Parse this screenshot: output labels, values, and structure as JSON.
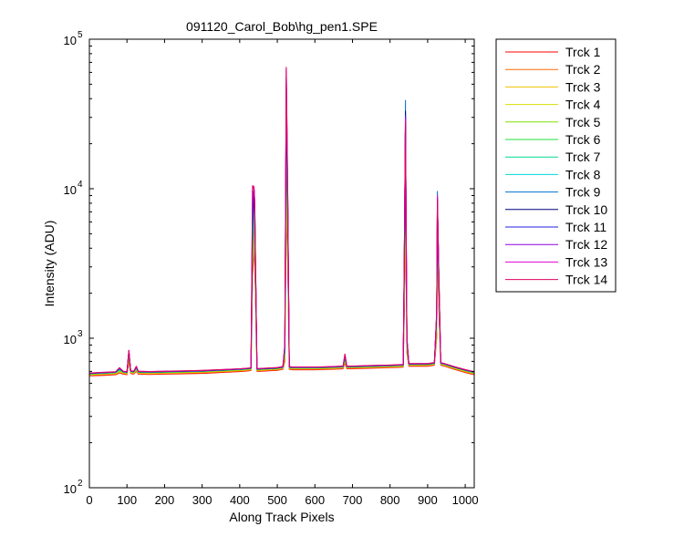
{
  "chart_data": {
    "type": "line",
    "title": "091120_Carol_Bob\\hg_pen1.SPE",
    "xlabel": "Along Track Pixels",
    "ylabel": "Intensity (ADU)",
    "xlim": [
      0,
      1024
    ],
    "ylim": [
      100,
      100000
    ],
    "yscale": "log",
    "grid": false,
    "legend_position": "outside-right",
    "x_ticks": [
      0,
      100,
      200,
      300,
      400,
      500,
      600,
      700,
      800,
      900,
      1000
    ],
    "x_tick_labels": [
      "0",
      "100",
      "200",
      "300",
      "400",
      "500",
      "600",
      "700",
      "800",
      "900",
      "1000"
    ],
    "y_ticks": [
      {
        "value": 100,
        "base": "10",
        "exp": "2"
      },
      {
        "value": 1000,
        "base": "10",
        "exp": "3"
      },
      {
        "value": 10000,
        "base": "10",
        "exp": "4"
      },
      {
        "value": 100000,
        "base": "10",
        "exp": "5"
      }
    ],
    "x": [
      0,
      40,
      70,
      80,
      90,
      100,
      105,
      110,
      118,
      125,
      130,
      160,
      200,
      250,
      300,
      350,
      400,
      425,
      430,
      434,
      438,
      440,
      442,
      446,
      450,
      500,
      515,
      520,
      524,
      528,
      532,
      540,
      600,
      650,
      675,
      680,
      685,
      700,
      750,
      800,
      835,
      838,
      841,
      843,
      845,
      850,
      880,
      900,
      918,
      924,
      926,
      930,
      935,
      945,
      970,
      1000,
      1024
    ],
    "series": [
      {
        "name": "Trck 1",
        "color": "#ff0000",
        "values": [
          560,
          565,
          570,
          585,
          575,
          570,
          700,
          580,
          575,
          600,
          575,
          572,
          575,
          578,
          582,
          590,
          598,
          605,
          610,
          2500,
          4000,
          3000,
          1800,
          600,
          600,
          610,
          620,
          700,
          7000,
          3000,
          620,
          615,
          615,
          620,
          625,
          680,
          625,
          625,
          630,
          635,
          640,
          1500,
          9000,
          2200,
          800,
          650,
          650,
          650,
          660,
          1000,
          4000,
          1500,
          660,
          650,
          620,
          590,
          570
        ]
      },
      {
        "name": "Trck 2",
        "color": "#ff6a00",
        "values": [
          565,
          570,
          575,
          590,
          580,
          575,
          720,
          585,
          580,
          605,
          580,
          577,
          580,
          583,
          587,
          595,
          603,
          610,
          615,
          2700,
          4400,
          3300,
          1900,
          605,
          605,
          615,
          625,
          720,
          8000,
          3300,
          625,
          620,
          620,
          625,
          630,
          690,
          630,
          630,
          635,
          640,
          645,
          1650,
          10000,
          2400,
          820,
          655,
          655,
          655,
          665,
          1050,
          4300,
          1600,
          665,
          655,
          625,
          595,
          575
        ]
      },
      {
        "name": "Trck 3",
        "color": "#f0c000",
        "values": [
          570,
          575,
          580,
          595,
          585,
          580,
          740,
          590,
          585,
          610,
          585,
          582,
          585,
          588,
          592,
          600,
          608,
          615,
          620,
          2900,
          4800,
          3600,
          2000,
          610,
          610,
          620,
          630,
          740,
          9000,
          3600,
          630,
          625,
          625,
          630,
          635,
          700,
          635,
          635,
          640,
          645,
          650,
          1800,
          11000,
          2600,
          840,
          660,
          660,
          660,
          670,
          1100,
          4600,
          1700,
          670,
          660,
          630,
          600,
          580
        ]
      },
      {
        "name": "Trck 4",
        "color": "#d4e000",
        "values": [
          572,
          578,
          583,
          600,
          588,
          583,
          760,
          593,
          588,
          615,
          588,
          585,
          588,
          591,
          595,
          603,
          611,
          618,
          623,
          3200,
          5400,
          4000,
          2150,
          613,
          613,
          623,
          633,
          760,
          11000,
          4000,
          633,
          628,
          628,
          633,
          638,
          710,
          638,
          638,
          643,
          648,
          653,
          2000,
          13000,
          2900,
          860,
          663,
          663,
          663,
          673,
          1150,
          5000,
          1800,
          673,
          663,
          633,
          603,
          583
        ]
      },
      {
        "name": "Trck 5",
        "color": "#80e000",
        "values": [
          575,
          581,
          586,
          605,
          591,
          586,
          780,
          596,
          591,
          620,
          591,
          588,
          591,
          594,
          598,
          606,
          614,
          621,
          626,
          3500,
          6000,
          4500,
          2300,
          616,
          616,
          626,
          636,
          780,
          14000,
          4500,
          636,
          631,
          631,
          636,
          641,
          720,
          641,
          641,
          646,
          651,
          656,
          2200,
          16000,
          3200,
          880,
          666,
          666,
          666,
          676,
          1200,
          5500,
          1900,
          676,
          666,
          636,
          606,
          586
        ]
      },
      {
        "name": "Trck 6",
        "color": "#20e040",
        "values": [
          577,
          583,
          588,
          610,
          593,
          588,
          800,
          598,
          593,
          625,
          593,
          590,
          593,
          596,
          600,
          608,
          616,
          623,
          628,
          3800,
          6800,
          5000,
          2450,
          618,
          618,
          628,
          638,
          800,
          18000,
          5000,
          638,
          633,
          633,
          638,
          643,
          730,
          643,
          643,
          648,
          653,
          658,
          2400,
          19000,
          3500,
          900,
          668,
          668,
          668,
          678,
          1250,
          6000,
          2000,
          678,
          668,
          638,
          608,
          588
        ]
      },
      {
        "name": "Trck 7",
        "color": "#00d890",
        "values": [
          579,
          585,
          590,
          615,
          595,
          590,
          810,
          600,
          595,
          630,
          595,
          592,
          595,
          598,
          602,
          610,
          618,
          625,
          630,
          4200,
          7600,
          5600,
          2600,
          620,
          620,
          630,
          640,
          820,
          23000,
          5600,
          640,
          635,
          635,
          640,
          645,
          740,
          645,
          645,
          650,
          655,
          660,
          2600,
          22000,
          3800,
          920,
          670,
          670,
          670,
          680,
          1300,
          6600,
          2100,
          680,
          670,
          640,
          610,
          590
        ]
      },
      {
        "name": "Trck 8",
        "color": "#00d8d8",
        "values": [
          580,
          586,
          591,
          620,
          596,
          591,
          815,
          601,
          596,
          635,
          596,
          593,
          596,
          599,
          603,
          611,
          619,
          626,
          631,
          4700,
          8400,
          6200,
          2750,
          621,
          621,
          631,
          641,
          840,
          29000,
          6200,
          641,
          636,
          636,
          641,
          646,
          750,
          646,
          646,
          651,
          656,
          661,
          2800,
          26000,
          4100,
          940,
          671,
          671,
          671,
          681,
          1350,
          7200,
          2200,
          681,
          671,
          641,
          611,
          591
        ]
      },
      {
        "name": "Trck 9",
        "color": "#0070d0",
        "values": [
          581,
          587,
          592,
          625,
          597,
          592,
          820,
          602,
          597,
          640,
          597,
          594,
          597,
          600,
          604,
          612,
          620,
          627,
          632,
          5200,
          9200,
          6800,
          2900,
          622,
          622,
          632,
          642,
          860,
          36000,
          6800,
          642,
          637,
          637,
          642,
          647,
          760,
          647,
          647,
          652,
          657,
          662,
          3000,
          39000,
          4400,
          960,
          672,
          672,
          672,
          682,
          1400,
          9600,
          2300,
          682,
          672,
          642,
          612,
          592
        ]
      },
      {
        "name": "Trck 10",
        "color": "#000080",
        "values": [
          582,
          588,
          593,
          628,
          598,
          593,
          822,
          603,
          598,
          642,
          598,
          595,
          598,
          601,
          605,
          613,
          621,
          628,
          633,
          5600,
          9600,
          7200,
          3000,
          623,
          623,
          633,
          643,
          870,
          45000,
          7200,
          643,
          638,
          638,
          643,
          648,
          765,
          648,
          648,
          653,
          658,
          663,
          3200,
          33000,
          4600,
          970,
          673,
          673,
          673,
          683,
          1420,
          8200,
          2350,
          683,
          673,
          643,
          613,
          593
        ]
      },
      {
        "name": "Trck 11",
        "color": "#2020e0",
        "values": [
          583,
          589,
          594,
          630,
          599,
          594,
          824,
          604,
          599,
          644,
          599,
          596,
          599,
          602,
          606,
          614,
          622,
          629,
          634,
          6000,
          10000,
          7600,
          3100,
          624,
          624,
          634,
          644,
          880,
          55000,
          7600,
          644,
          639,
          639,
          644,
          649,
          770,
          649,
          649,
          654,
          659,
          664,
          3300,
          31000,
          4800,
          980,
          674,
          674,
          674,
          684,
          1440,
          8600,
          2400,
          684,
          674,
          644,
          614,
          594
        ]
      },
      {
        "name": "Trck 12",
        "color": "#9000e0",
        "values": [
          584,
          590,
          595,
          632,
          600,
          595,
          826,
          605,
          600,
          646,
          600,
          597,
          600,
          603,
          607,
          615,
          623,
          630,
          635,
          8000,
          10200,
          8000,
          3200,
          625,
          625,
          635,
          645,
          890,
          62000,
          8000,
          645,
          640,
          640,
          645,
          650,
          775,
          650,
          650,
          655,
          660,
          665,
          3400,
          30000,
          5000,
          990,
          675,
          675,
          675,
          685,
          1460,
          8800,
          2450,
          685,
          675,
          645,
          615,
          595
        ]
      },
      {
        "name": "Trck 13",
        "color": "#e000d0",
        "values": [
          585,
          591,
          596,
          634,
          601,
          596,
          828,
          606,
          601,
          648,
          601,
          598,
          601,
          604,
          608,
          616,
          624,
          631,
          636,
          10000,
          10400,
          8200,
          3300,
          626,
          626,
          636,
          646,
          900,
          64000,
          8200,
          646,
          641,
          641,
          646,
          651,
          780,
          651,
          651,
          656,
          661,
          666,
          3500,
          29000,
          5100,
          1000,
          676,
          676,
          676,
          686,
          1480,
          9000,
          2500,
          686,
          676,
          646,
          616,
          596
        ]
      },
      {
        "name": "Trck 14",
        "color": "#e00060",
        "values": [
          586,
          592,
          597,
          636,
          602,
          597,
          830,
          607,
          602,
          650,
          602,
          599,
          602,
          605,
          609,
          617,
          625,
          632,
          637,
          10500,
          10000,
          8400,
          3400,
          627,
          627,
          637,
          647,
          910,
          65000,
          8400,
          647,
          642,
          642,
          647,
          652,
          785,
          652,
          652,
          657,
          662,
          667,
          3600,
          28000,
          5200,
          1010,
          677,
          677,
          677,
          687,
          1500,
          8500,
          2550,
          687,
          677,
          647,
          617,
          597
        ]
      }
    ]
  }
}
